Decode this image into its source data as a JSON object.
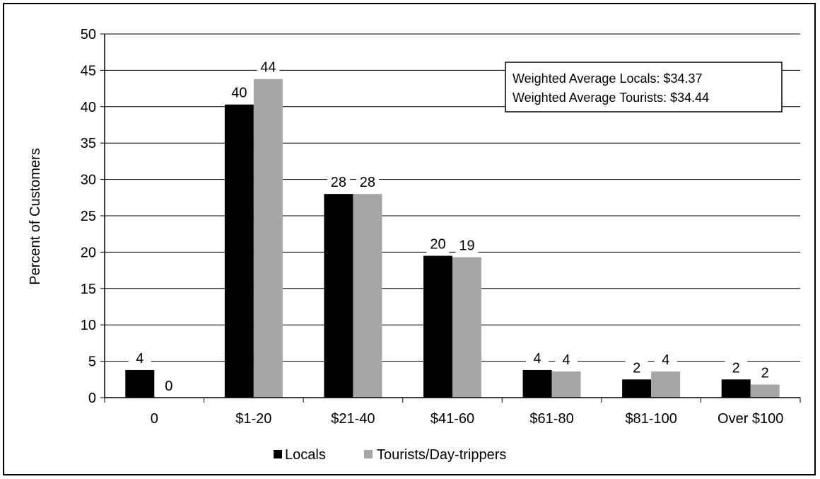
{
  "chart_data": {
    "type": "bar",
    "categories": [
      "0",
      "$1-20",
      "$21-40",
      "$41-60",
      "$61-80",
      "$81-100",
      "Over $100"
    ],
    "series": [
      {
        "name": "Locals",
        "color": "#000000",
        "values": [
          3.8,
          40.3,
          28.0,
          19.5,
          3.8,
          2.5,
          2.5
        ],
        "labels": [
          "4",
          "40",
          "28",
          "20",
          "4",
          "2",
          "2"
        ]
      },
      {
        "name": "Tourists/Day-trippers",
        "color": "#a6a6a6",
        "values": [
          0.0,
          43.8,
          28.0,
          19.3,
          3.6,
          3.6,
          1.8
        ],
        "labels": [
          "0",
          "44",
          "28",
          "19",
          "4",
          "4",
          "2"
        ]
      }
    ],
    "title": "",
    "xlabel": "",
    "ylabel": "Percent of Customers",
    "ylim": [
      0,
      50
    ],
    "yticks": [
      0,
      5,
      10,
      15,
      20,
      25,
      30,
      35,
      40,
      45,
      50
    ],
    "grid": true,
    "legend_position": "bottom",
    "annotation": [
      "Weighted Average Locals: $34.37",
      "Weighted Average Tourists: $34.44"
    ]
  }
}
